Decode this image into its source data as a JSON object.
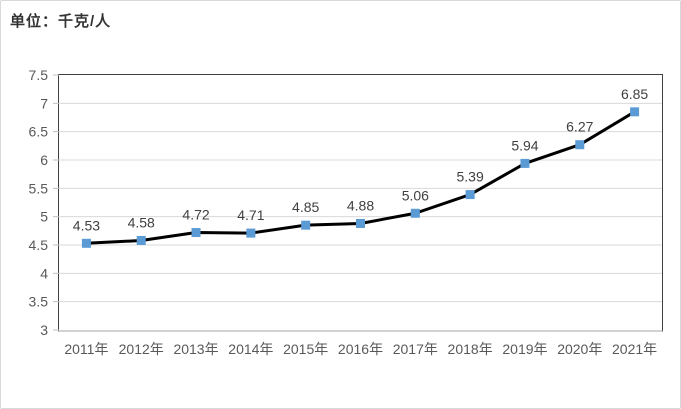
{
  "chart_data": {
    "type": "line",
    "unit_label": "单位：千克/人",
    "categories": [
      "2011年",
      "2012年",
      "2013年",
      "2014年",
      "2015年",
      "2016年",
      "2017年",
      "2018年",
      "2019年",
      "2020年",
      "2021年"
    ],
    "values": [
      4.53,
      4.58,
      4.72,
      4.71,
      4.85,
      4.88,
      5.06,
      5.39,
      5.94,
      6.27,
      6.85
    ],
    "data_labels": [
      "4.53",
      "4.58",
      "4.72",
      "4.71",
      "4.85",
      "4.88",
      "5.06",
      "5.39",
      "5.94",
      "6.27",
      "6.85"
    ],
    "xlabel": "",
    "ylabel": "",
    "ylim": [
      3,
      7.5
    ],
    "ytick_step": 0.5,
    "ytick_labels": [
      "3",
      "3.5",
      "4",
      "4.5",
      "5",
      "5.5",
      "6",
      "6.5",
      "7",
      "7.5"
    ],
    "grid": true,
    "legend": "none",
    "colors": {
      "line": "#000000",
      "marker": "#5b9bd5",
      "gridline": "#d9d9d9",
      "axis_text": "#595959",
      "data_label_text": "#404040",
      "plot_border": "#404040"
    },
    "marker_shape": "square"
  }
}
